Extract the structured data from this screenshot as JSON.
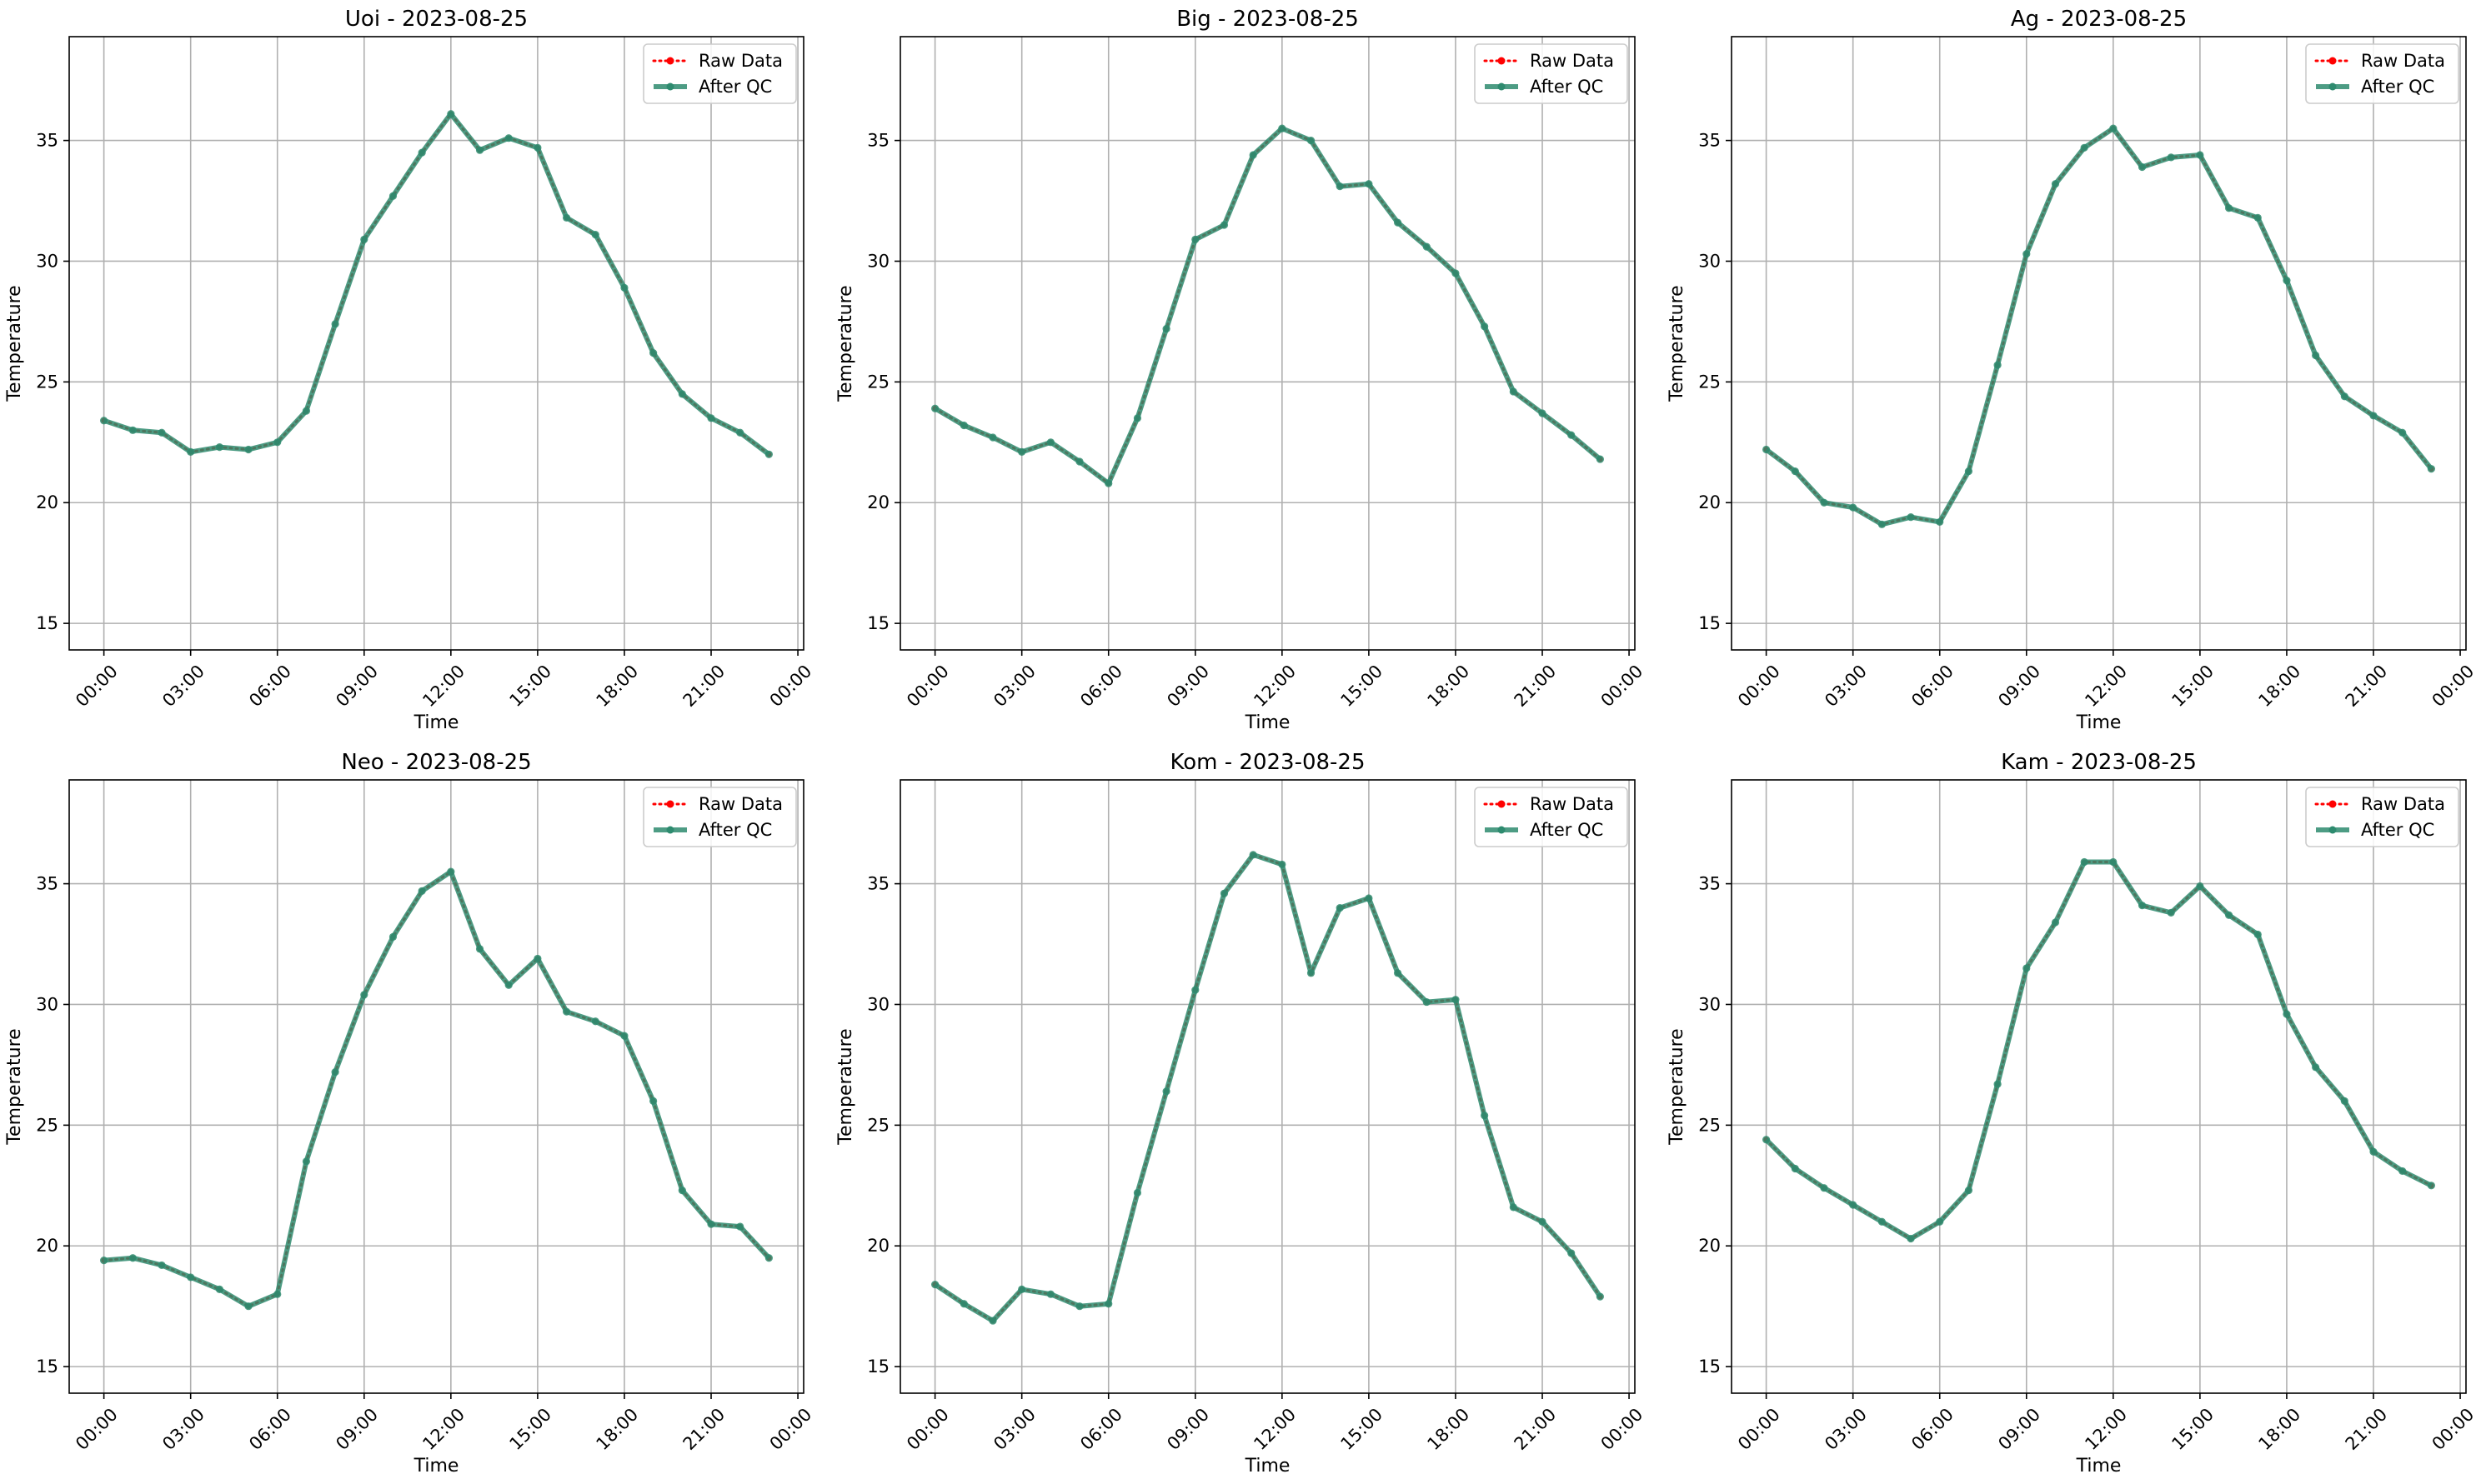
{
  "figure": {
    "background": "#ffffff",
    "raw_color": "#ff0000",
    "qc_color": "#2e8b6f",
    "qc_alpha": 0.85,
    "grid_color": "#b0b0b0"
  },
  "chart_data": [
    {
      "type": "line",
      "title": "Uoi - 2023-08-25",
      "xlabel": "Time",
      "ylabel": "Temperature",
      "xlim": [
        -1.2,
        24.2
      ],
      "ylim": [
        13.9,
        39.3
      ],
      "xticks": [
        0,
        3,
        6,
        9,
        12,
        15,
        18,
        21,
        24
      ],
      "xtick_labels": [
        "00:00",
        "03:00",
        "06:00",
        "09:00",
        "12:00",
        "15:00",
        "18:00",
        "21:00",
        "00:00"
      ],
      "yticks": [
        15,
        20,
        25,
        30,
        35
      ],
      "ytick_labels": [
        "15",
        "20",
        "25",
        "30",
        "35"
      ],
      "grid": true,
      "legend_position": "top-right",
      "x": [
        0,
        1,
        2,
        3,
        4,
        5,
        6,
        7,
        8,
        9,
        10,
        11,
        12,
        13,
        14,
        15,
        16,
        17,
        18,
        19,
        20,
        21,
        22,
        23
      ],
      "series": [
        {
          "name": "Raw Data",
          "values": [
            23.4,
            23.0,
            22.9,
            22.1,
            22.3,
            22.2,
            22.5,
            23.8,
            27.4,
            30.9,
            32.7,
            34.5,
            36.1,
            34.6,
            35.1,
            34.7,
            31.8,
            31.1,
            28.9,
            26.2,
            24.5,
            23.5,
            22.9,
            22.0
          ]
        },
        {
          "name": "After QC",
          "values": [
            23.4,
            23.0,
            22.9,
            22.1,
            22.3,
            22.2,
            22.5,
            23.8,
            27.4,
            30.9,
            32.7,
            34.5,
            36.1,
            34.6,
            35.1,
            34.7,
            31.8,
            31.1,
            28.9,
            26.2,
            24.5,
            23.5,
            22.9,
            22.0
          ]
        }
      ]
    },
    {
      "type": "line",
      "title": "Big - 2023-08-25",
      "xlabel": "Time",
      "ylabel": "Temperature",
      "xlim": [
        -1.2,
        24.2
      ],
      "ylim": [
        13.9,
        39.3
      ],
      "xticks": [
        0,
        3,
        6,
        9,
        12,
        15,
        18,
        21,
        24
      ],
      "xtick_labels": [
        "00:00",
        "03:00",
        "06:00",
        "09:00",
        "12:00",
        "15:00",
        "18:00",
        "21:00",
        "00:00"
      ],
      "yticks": [
        15,
        20,
        25,
        30,
        35
      ],
      "ytick_labels": [
        "15",
        "20",
        "25",
        "30",
        "35"
      ],
      "grid": true,
      "legend_position": "top-right",
      "x": [
        0,
        1,
        2,
        3,
        4,
        5,
        6,
        7,
        8,
        9,
        10,
        11,
        12,
        13,
        14,
        15,
        16,
        17,
        18,
        19,
        20,
        21,
        22,
        23
      ],
      "series": [
        {
          "name": "Raw Data",
          "values": [
            23.9,
            23.2,
            22.7,
            22.1,
            22.5,
            21.7,
            20.8,
            23.5,
            27.2,
            30.9,
            31.5,
            34.4,
            35.5,
            35.0,
            33.1,
            33.2,
            31.6,
            30.6,
            29.5,
            27.3,
            24.6,
            23.7,
            22.8,
            21.8
          ]
        },
        {
          "name": "After QC",
          "values": [
            23.9,
            23.2,
            22.7,
            22.1,
            22.5,
            21.7,
            20.8,
            23.5,
            27.2,
            30.9,
            31.5,
            34.4,
            35.5,
            35.0,
            33.1,
            33.2,
            31.6,
            30.6,
            29.5,
            27.3,
            24.6,
            23.7,
            22.8,
            21.8
          ]
        }
      ]
    },
    {
      "type": "line",
      "title": "Ag - 2023-08-25",
      "xlabel": "Time",
      "ylabel": "Temperature",
      "xlim": [
        -1.2,
        24.2
      ],
      "ylim": [
        13.9,
        39.3
      ],
      "xticks": [
        0,
        3,
        6,
        9,
        12,
        15,
        18,
        21,
        24
      ],
      "xtick_labels": [
        "00:00",
        "03:00",
        "06:00",
        "09:00",
        "12:00",
        "15:00",
        "18:00",
        "21:00",
        "00:00"
      ],
      "yticks": [
        15,
        20,
        25,
        30,
        35
      ],
      "ytick_labels": [
        "15",
        "20",
        "25",
        "30",
        "35"
      ],
      "grid": true,
      "legend_position": "top-right",
      "x": [
        0,
        1,
        2,
        3,
        4,
        5,
        6,
        7,
        8,
        9,
        10,
        11,
        12,
        13,
        14,
        15,
        16,
        17,
        18,
        19,
        20,
        21,
        22,
        23
      ],
      "series": [
        {
          "name": "Raw Data",
          "values": [
            22.2,
            21.3,
            20.0,
            19.8,
            19.1,
            19.4,
            19.2,
            21.3,
            25.7,
            30.3,
            33.2,
            34.7,
            35.5,
            33.9,
            34.3,
            34.4,
            32.2,
            31.8,
            29.2,
            26.1,
            24.4,
            23.6,
            22.9,
            21.4
          ]
        },
        {
          "name": "After QC",
          "values": [
            22.2,
            21.3,
            20.0,
            19.8,
            19.1,
            19.4,
            19.2,
            21.3,
            25.7,
            30.3,
            33.2,
            34.7,
            35.5,
            33.9,
            34.3,
            34.4,
            32.2,
            31.8,
            29.2,
            26.1,
            24.4,
            23.6,
            22.9,
            21.4
          ]
        }
      ]
    },
    {
      "type": "line",
      "title": "Neo - 2023-08-25",
      "xlabel": "Time",
      "ylabel": "Temperature",
      "xlim": [
        -1.2,
        24.2
      ],
      "ylim": [
        13.9,
        39.3
      ],
      "xticks": [
        0,
        3,
        6,
        9,
        12,
        15,
        18,
        21,
        24
      ],
      "xtick_labels": [
        "00:00",
        "03:00",
        "06:00",
        "09:00",
        "12:00",
        "15:00",
        "18:00",
        "21:00",
        "00:00"
      ],
      "yticks": [
        15,
        20,
        25,
        30,
        35
      ],
      "ytick_labels": [
        "15",
        "20",
        "25",
        "30",
        "35"
      ],
      "grid": true,
      "legend_position": "top-right",
      "x": [
        0,
        1,
        2,
        3,
        4,
        5,
        6,
        7,
        8,
        9,
        10,
        11,
        12,
        13,
        14,
        15,
        16,
        17,
        18,
        19,
        20,
        21,
        22,
        23
      ],
      "series": [
        {
          "name": "Raw Data",
          "values": [
            19.4,
            19.5,
            19.2,
            18.7,
            18.2,
            17.5,
            18.0,
            23.5,
            27.2,
            30.4,
            32.8,
            34.7,
            35.5,
            32.3,
            30.8,
            31.9,
            29.7,
            29.3,
            28.7,
            26.0,
            22.3,
            20.9,
            20.8,
            19.5
          ]
        },
        {
          "name": "After QC",
          "values": [
            19.4,
            19.5,
            19.2,
            18.7,
            18.2,
            17.5,
            18.0,
            23.5,
            27.2,
            30.4,
            32.8,
            34.7,
            35.5,
            32.3,
            30.8,
            31.9,
            29.7,
            29.3,
            28.7,
            26.0,
            22.3,
            20.9,
            20.8,
            19.5
          ]
        }
      ]
    },
    {
      "type": "line",
      "title": "Kom - 2023-08-25",
      "xlabel": "Time",
      "ylabel": "Temperature",
      "xlim": [
        -1.2,
        24.2
      ],
      "ylim": [
        13.9,
        39.3
      ],
      "xticks": [
        0,
        3,
        6,
        9,
        12,
        15,
        18,
        21,
        24
      ],
      "xtick_labels": [
        "00:00",
        "03:00",
        "06:00",
        "09:00",
        "12:00",
        "15:00",
        "18:00",
        "21:00",
        "00:00"
      ],
      "yticks": [
        15,
        20,
        25,
        30,
        35
      ],
      "ytick_labels": [
        "15",
        "20",
        "25",
        "30",
        "35"
      ],
      "grid": true,
      "legend_position": "top-right",
      "x": [
        0,
        1,
        2,
        3,
        4,
        5,
        6,
        7,
        8,
        9,
        10,
        11,
        12,
        13,
        14,
        15,
        16,
        17,
        18,
        19,
        20,
        21,
        22,
        23
      ],
      "series": [
        {
          "name": "Raw Data",
          "values": [
            18.4,
            17.6,
            16.9,
            18.2,
            18.0,
            17.5,
            17.6,
            22.2,
            26.4,
            30.6,
            34.6,
            36.2,
            35.8,
            31.3,
            34.0,
            34.4,
            31.3,
            30.1,
            30.2,
            25.4,
            21.6,
            21.0,
            19.7,
            17.9
          ]
        },
        {
          "name": "After QC",
          "values": [
            18.4,
            17.6,
            16.9,
            18.2,
            18.0,
            17.5,
            17.6,
            22.2,
            26.4,
            30.6,
            34.6,
            36.2,
            35.8,
            31.3,
            34.0,
            34.4,
            31.3,
            30.1,
            30.2,
            25.4,
            21.6,
            21.0,
            19.7,
            17.9
          ]
        }
      ]
    },
    {
      "type": "line",
      "title": "Kam - 2023-08-25",
      "xlabel": "Time",
      "ylabel": "Temperature",
      "xlim": [
        -1.2,
        24.2
      ],
      "ylim": [
        13.9,
        39.3
      ],
      "xticks": [
        0,
        3,
        6,
        9,
        12,
        15,
        18,
        21,
        24
      ],
      "xtick_labels": [
        "00:00",
        "03:00",
        "06:00",
        "09:00",
        "12:00",
        "15:00",
        "18:00",
        "21:00",
        "00:00"
      ],
      "yticks": [
        15,
        20,
        25,
        30,
        35
      ],
      "ytick_labels": [
        "15",
        "20",
        "25",
        "30",
        "35"
      ],
      "grid": true,
      "legend_position": "top-right",
      "x": [
        0,
        1,
        2,
        3,
        4,
        5,
        6,
        7,
        8,
        9,
        10,
        11,
        12,
        13,
        14,
        15,
        16,
        17,
        18,
        19,
        20,
        21,
        22,
        23
      ],
      "series": [
        {
          "name": "Raw Data",
          "values": [
            24.4,
            23.2,
            22.4,
            21.7,
            21.0,
            20.3,
            21.0,
            22.3,
            26.7,
            31.5,
            33.4,
            35.9,
            35.9,
            34.1,
            33.8,
            34.9,
            33.7,
            32.9,
            29.6,
            27.4,
            26.0,
            23.9,
            23.1,
            22.5
          ]
        },
        {
          "name": "After QC",
          "values": [
            24.4,
            23.2,
            22.4,
            21.7,
            21.0,
            20.3,
            21.0,
            22.3,
            26.7,
            31.5,
            33.4,
            35.9,
            35.9,
            34.1,
            33.8,
            34.9,
            33.7,
            32.9,
            29.6,
            27.4,
            26.0,
            23.9,
            23.1,
            22.5
          ]
        }
      ]
    }
  ]
}
